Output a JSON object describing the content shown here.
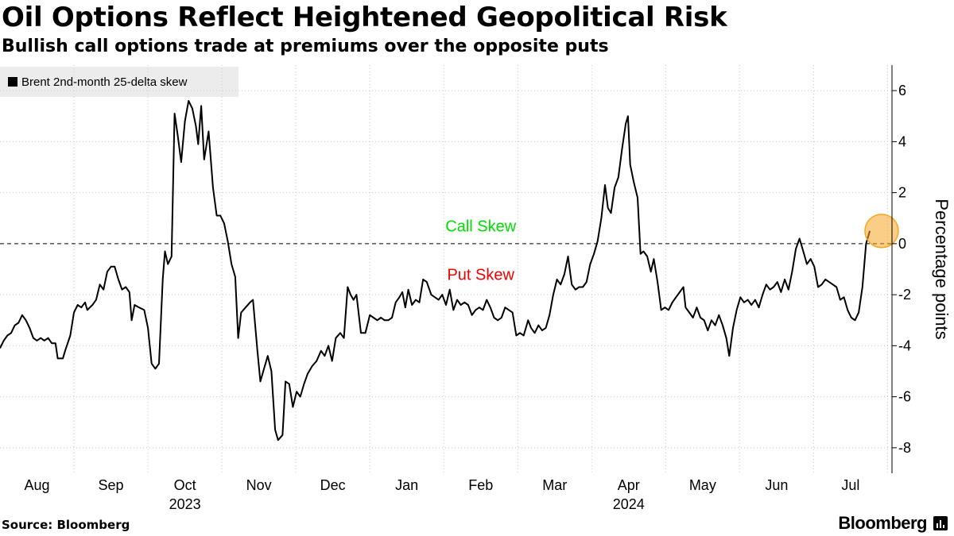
{
  "title": "Oil Options Reflect Heightened Geopolitical Risk",
  "subtitle": "Bullish call options trade at premiums over the opposite puts",
  "legend": {
    "label": "Brent 2nd-month 25-delta skew",
    "color": "#000000"
  },
  "footer": {
    "source": "Source: Bloomberg",
    "brand": "Bloomberg"
  },
  "chart_data": {
    "type": "line",
    "title": "Oil Options Reflect Heightened Geopolitical Risk",
    "ylabel": "Percentage points",
    "ylim": [
      -9,
      7
    ],
    "yticks": [
      6,
      4,
      2,
      0,
      -2,
      -4,
      -6,
      -8
    ],
    "ytick_labels": [
      "6",
      "4",
      "2",
      "0",
      "-2",
      "-4",
      "-6",
      "-8"
    ],
    "xlim": [
      0,
      12.06
    ],
    "x_months": [
      {
        "label": "Aug",
        "pos": 0.5
      },
      {
        "label": "Sep",
        "pos": 1.5
      },
      {
        "label": "Oct",
        "pos": 2.5
      },
      {
        "label": "Nov",
        "pos": 3.5
      },
      {
        "label": "Dec",
        "pos": 4.5
      },
      {
        "label": "Jan",
        "pos": 5.5
      },
      {
        "label": "Feb",
        "pos": 6.5
      },
      {
        "label": "Mar",
        "pos": 7.5
      },
      {
        "label": "Apr",
        "pos": 8.5
      },
      {
        "label": "May",
        "pos": 9.5
      },
      {
        "label": "Jun",
        "pos": 10.5
      },
      {
        "label": "Jul",
        "pos": 11.5
      }
    ],
    "x_years": [
      {
        "label": "2023",
        "pos": 2.5
      },
      {
        "label": "2024",
        "pos": 8.5
      }
    ],
    "reference_line": {
      "y": 0,
      "style": "dashed"
    },
    "annotations": [
      {
        "text": "Call Skew",
        "x": 6.5,
        "y": 0.7,
        "color": "#00dd00"
      },
      {
        "text": "Put Skew",
        "x": 6.5,
        "y": -1.2,
        "color": "#ee0000"
      }
    ],
    "highlight": {
      "x": 11.92,
      "y": 0.5,
      "color": "#f5a623"
    },
    "series": [
      {
        "name": "Brent 2nd-month 25-delta skew",
        "color": "#000000",
        "points": [
          [
            0.0,
            -4.1
          ],
          [
            0.05,
            -3.8
          ],
          [
            0.1,
            -3.6
          ],
          [
            0.15,
            -3.5
          ],
          [
            0.2,
            -3.2
          ],
          [
            0.25,
            -3.1
          ],
          [
            0.3,
            -2.8
          ],
          [
            0.35,
            -3.0
          ],
          [
            0.4,
            -3.3
          ],
          [
            0.45,
            -3.7
          ],
          [
            0.5,
            -3.8
          ],
          [
            0.55,
            -3.7
          ],
          [
            0.6,
            -3.8
          ],
          [
            0.65,
            -3.7
          ],
          [
            0.7,
            -3.9
          ],
          [
            0.75,
            -3.9
          ],
          [
            0.78,
            -4.5
          ],
          [
            0.85,
            -4.5
          ],
          [
            0.88,
            -4.2
          ],
          [
            0.95,
            -3.6
          ],
          [
            1.0,
            -2.7
          ],
          [
            1.05,
            -2.4
          ],
          [
            1.1,
            -2.5
          ],
          [
            1.15,
            -2.3
          ],
          [
            1.18,
            -2.6
          ],
          [
            1.25,
            -2.4
          ],
          [
            1.3,
            -2.2
          ],
          [
            1.35,
            -1.6
          ],
          [
            1.4,
            -1.8
          ],
          [
            1.45,
            -1.1
          ],
          [
            1.5,
            -0.9
          ],
          [
            1.55,
            -0.9
          ],
          [
            1.6,
            -1.4
          ],
          [
            1.65,
            -1.8
          ],
          [
            1.7,
            -1.7
          ],
          [
            1.75,
            -1.9
          ],
          [
            1.78,
            -3.0
          ],
          [
            1.82,
            -2.4
          ],
          [
            1.88,
            -2.5
          ],
          [
            1.95,
            -2.6
          ],
          [
            2.0,
            -3.3
          ],
          [
            2.05,
            -4.7
          ],
          [
            2.1,
            -4.9
          ],
          [
            2.15,
            -4.7
          ],
          [
            2.2,
            -1.4
          ],
          [
            2.23,
            -0.3
          ],
          [
            2.27,
            -0.8
          ],
          [
            2.32,
            -0.5
          ],
          [
            2.36,
            5.1
          ],
          [
            2.4,
            4.3
          ],
          [
            2.45,
            3.2
          ],
          [
            2.5,
            4.8
          ],
          [
            2.55,
            5.6
          ],
          [
            2.6,
            5.3
          ],
          [
            2.65,
            4.6
          ],
          [
            2.68,
            3.9
          ],
          [
            2.72,
            5.4
          ],
          [
            2.76,
            3.3
          ],
          [
            2.82,
            4.4
          ],
          [
            2.88,
            2.2
          ],
          [
            2.93,
            1.1
          ],
          [
            2.98,
            1.1
          ],
          [
            3.03,
            0.8
          ],
          [
            3.08,
            0.1
          ],
          [
            3.13,
            -0.8
          ],
          [
            3.18,
            -1.3
          ],
          [
            3.22,
            -3.7
          ],
          [
            3.26,
            -2.7
          ],
          [
            3.32,
            -2.5
          ],
          [
            3.38,
            -2.3
          ],
          [
            3.42,
            -2.2
          ],
          [
            3.48,
            -4.2
          ],
          [
            3.52,
            -5.4
          ],
          [
            3.57,
            -4.9
          ],
          [
            3.62,
            -4.4
          ],
          [
            3.67,
            -5.0
          ],
          [
            3.72,
            -7.3
          ],
          [
            3.76,
            -7.7
          ],
          [
            3.82,
            -7.5
          ],
          [
            3.86,
            -5.4
          ],
          [
            3.91,
            -5.5
          ],
          [
            3.96,
            -6.4
          ],
          [
            4.01,
            -5.8
          ],
          [
            4.06,
            -6.0
          ],
          [
            4.11,
            -5.5
          ],
          [
            4.16,
            -5.1
          ],
          [
            4.22,
            -4.8
          ],
          [
            4.28,
            -4.6
          ],
          [
            4.34,
            -4.2
          ],
          [
            4.39,
            -4.4
          ],
          [
            4.44,
            -4.0
          ],
          [
            4.49,
            -4.6
          ],
          [
            4.54,
            -3.7
          ],
          [
            4.6,
            -3.5
          ],
          [
            4.65,
            -3.7
          ],
          [
            4.7,
            -1.7
          ],
          [
            4.74,
            -2.0
          ],
          [
            4.78,
            -2.2
          ],
          [
            4.82,
            -2.0
          ],
          [
            4.88,
            -3.5
          ],
          [
            4.94,
            -3.5
          ],
          [
            5.0,
            -2.8
          ],
          [
            5.05,
            -2.9
          ],
          [
            5.1,
            -3.0
          ],
          [
            5.15,
            -2.9
          ],
          [
            5.2,
            -3.0
          ],
          [
            5.25,
            -3.0
          ],
          [
            5.3,
            -2.9
          ],
          [
            5.35,
            -2.3
          ],
          [
            5.4,
            -2.1
          ],
          [
            5.44,
            -1.9
          ],
          [
            5.48,
            -2.5
          ],
          [
            5.52,
            -1.8
          ],
          [
            5.57,
            -2.4
          ],
          [
            5.62,
            -2.2
          ],
          [
            5.67,
            -2.3
          ],
          [
            5.72,
            -1.4
          ],
          [
            5.77,
            -1.5
          ],
          [
            5.83,
            -2.0
          ],
          [
            5.88,
            -2.1
          ],
          [
            5.93,
            -2.2
          ],
          [
            5.98,
            -2.0
          ],
          [
            6.03,
            -2.4
          ],
          [
            6.08,
            -1.8
          ],
          [
            6.13,
            -2.6
          ],
          [
            6.18,
            -2.2
          ],
          [
            6.23,
            -2.4
          ],
          [
            6.28,
            -2.3
          ],
          [
            6.33,
            -2.4
          ],
          [
            6.38,
            -2.8
          ],
          [
            6.43,
            -2.6
          ],
          [
            6.48,
            -2.5
          ],
          [
            6.53,
            -2.6
          ],
          [
            6.58,
            -2.2
          ],
          [
            6.63,
            -2.5
          ],
          [
            6.68,
            -2.9
          ],
          [
            6.73,
            -3.0
          ],
          [
            6.78,
            -2.9
          ],
          [
            6.83,
            -2.5
          ],
          [
            6.88,
            -2.6
          ],
          [
            6.93,
            -2.7
          ],
          [
            6.98,
            -3.6
          ],
          [
            7.03,
            -3.5
          ],
          [
            7.08,
            -3.6
          ],
          [
            7.14,
            -3.0
          ],
          [
            7.18,
            -3.3
          ],
          [
            7.23,
            -3.5
          ],
          [
            7.28,
            -3.2
          ],
          [
            7.33,
            -3.4
          ],
          [
            7.38,
            -3.3
          ],
          [
            7.43,
            -2.8
          ],
          [
            7.48,
            -2.0
          ],
          [
            7.53,
            -1.4
          ],
          [
            7.58,
            -1.6
          ],
          [
            7.63,
            -1.2
          ],
          [
            7.68,
            -0.5
          ],
          [
            7.73,
            -1.6
          ],
          [
            7.78,
            -1.8
          ],
          [
            7.83,
            -1.7
          ],
          [
            7.88,
            -1.7
          ],
          [
            7.93,
            -1.5
          ],
          [
            7.98,
            -0.8
          ],
          [
            8.03,
            -0.4
          ],
          [
            8.08,
            0.1
          ],
          [
            8.13,
            1.0
          ],
          [
            8.18,
            2.3
          ],
          [
            8.22,
            1.4
          ],
          [
            8.26,
            1.2
          ],
          [
            8.31,
            2.2
          ],
          [
            8.36,
            2.6
          ],
          [
            8.41,
            3.7
          ],
          [
            8.46,
            4.7
          ],
          [
            8.49,
            5.0
          ],
          [
            8.52,
            3.1
          ],
          [
            8.57,
            2.4
          ],
          [
            8.62,
            1.8
          ],
          [
            8.66,
            -0.4
          ],
          [
            8.7,
            -0.3
          ],
          [
            8.75,
            -0.5
          ],
          [
            8.8,
            -1.1
          ],
          [
            8.84,
            -0.6
          ],
          [
            8.89,
            -1.5
          ],
          [
            8.94,
            -2.6
          ],
          [
            8.99,
            -2.5
          ],
          [
            9.04,
            -2.6
          ],
          [
            9.09,
            -2.3
          ],
          [
            9.14,
            -2.1
          ],
          [
            9.19,
            -1.9
          ],
          [
            9.24,
            -1.7
          ],
          [
            9.27,
            -2.5
          ],
          [
            9.32,
            -2.7
          ],
          [
            9.37,
            -2.9
          ],
          [
            9.42,
            -2.5
          ],
          [
            9.47,
            -2.9
          ],
          [
            9.52,
            -3.0
          ],
          [
            9.57,
            -3.4
          ],
          [
            9.62,
            -3.0
          ],
          [
            9.67,
            -3.2
          ],
          [
            9.72,
            -2.8
          ],
          [
            9.77,
            -3.2
          ],
          [
            9.82,
            -3.7
          ],
          [
            9.86,
            -4.4
          ],
          [
            9.91,
            -3.3
          ],
          [
            9.96,
            -2.6
          ],
          [
            10.01,
            -2.1
          ],
          [
            10.06,
            -2.3
          ],
          [
            10.11,
            -2.2
          ],
          [
            10.16,
            -2.4
          ],
          [
            10.21,
            -2.2
          ],
          [
            10.26,
            -2.5
          ],
          [
            10.31,
            -2.0
          ],
          [
            10.36,
            -1.6
          ],
          [
            10.41,
            -1.8
          ],
          [
            10.46,
            -1.7
          ],
          [
            10.51,
            -1.5
          ],
          [
            10.56,
            -1.9
          ],
          [
            10.61,
            -1.4
          ],
          [
            10.66,
            -1.8
          ],
          [
            10.71,
            -1.1
          ],
          [
            10.76,
            -0.2
          ],
          [
            10.81,
            0.2
          ],
          [
            10.86,
            -0.3
          ],
          [
            10.91,
            -0.8
          ],
          [
            10.96,
            -0.6
          ],
          [
            11.01,
            -0.9
          ],
          [
            11.06,
            -1.7
          ],
          [
            11.11,
            -1.6
          ],
          [
            11.16,
            -1.4
          ],
          [
            11.21,
            -1.5
          ],
          [
            11.26,
            -1.6
          ],
          [
            11.31,
            -1.7
          ],
          [
            11.36,
            -2.2
          ],
          [
            11.41,
            -2.1
          ],
          [
            11.46,
            -2.6
          ],
          [
            11.51,
            -2.9
          ],
          [
            11.56,
            -3.0
          ],
          [
            11.61,
            -2.7
          ],
          [
            11.66,
            -1.7
          ],
          [
            11.71,
            0.0
          ],
          [
            11.76,
            0.5
          ]
        ]
      }
    ]
  }
}
